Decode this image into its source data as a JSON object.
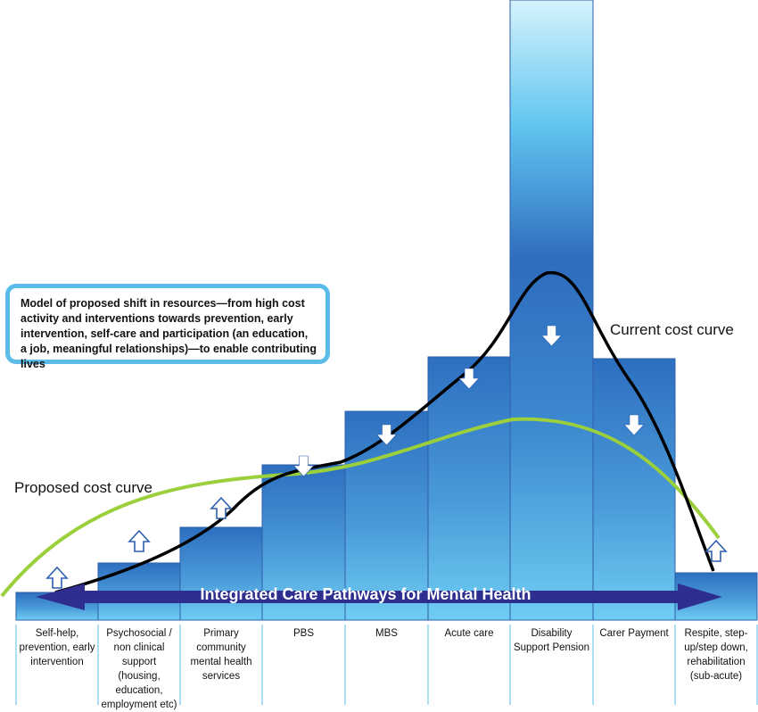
{
  "note": "Model of proposed shift in resources—from high cost activity and interventions towards prevention, early intervention, self-care and participation (an education, a job, meaningful relationships)—to enable contributing lives",
  "current_curve_label": "Current cost curve",
  "proposed_curve_label": "Proposed cost curve",
  "pathway_label": "Integrated Care Pathways for Mental Health",
  "categories": [
    {
      "label": "Self-help, prevention, early intervention",
      "shift": "up"
    },
    {
      "label": "Psychosocial / non clinical support (housing, education, employment etc)",
      "shift": "up"
    },
    {
      "label": "Primary community mental health services",
      "shift": "up"
    },
    {
      "label": "PBS",
      "shift": "down"
    },
    {
      "label": "MBS",
      "shift": "down"
    },
    {
      "label": "Acute care",
      "shift": "down"
    },
    {
      "label": "Disability Support Pension",
      "shift": "down"
    },
    {
      "label": "Carer Payment",
      "shift": "down"
    },
    {
      "label": "Respite, step-up/step down, rehabilitation (sub-acute)",
      "shift": "up"
    }
  ],
  "colors": {
    "bar_light": "#6fcdf3",
    "bar_dark": "#2d6fc0",
    "bar_border": "#2f5fa8",
    "band": "#2e2e8f",
    "current_curve": "#000000",
    "proposed_curve": "#9ccf3c",
    "box_border": "#5bbcea",
    "arrow_outline": "#2d5fae"
  }
}
